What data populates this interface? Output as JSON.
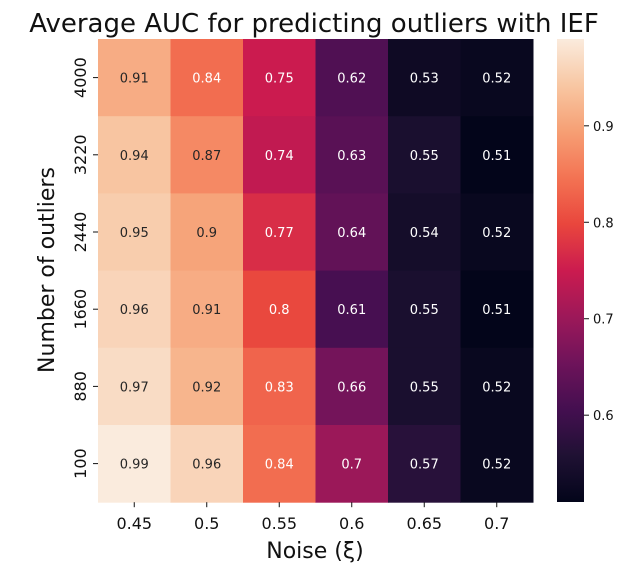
{
  "chart_data": {
    "type": "heatmap",
    "title": "Average AUC for predicting outliers with IEF",
    "xlabel": "Noise (ξ)",
    "ylabel": "Number of outliers",
    "x_categories": [
      "0.45",
      "0.5",
      "0.55",
      "0.6",
      "0.65",
      "0.7"
    ],
    "y_categories": [
      "4000",
      "3220",
      "2440",
      "1660",
      "880",
      "100"
    ],
    "values": [
      [
        0.91,
        0.84,
        0.75,
        0.62,
        0.53,
        0.52
      ],
      [
        0.94,
        0.87,
        0.74,
        0.63,
        0.55,
        0.51
      ],
      [
        0.95,
        0.9,
        0.77,
        0.64,
        0.54,
        0.52
      ],
      [
        0.96,
        0.91,
        0.8,
        0.61,
        0.55,
        0.51
      ],
      [
        0.97,
        0.92,
        0.83,
        0.66,
        0.55,
        0.52
      ],
      [
        0.99,
        0.96,
        0.84,
        0.7,
        0.57,
        0.52
      ]
    ],
    "colormap": "rocket",
    "colorbar": {
      "min": 0.51,
      "max": 0.99,
      "ticks": [
        0.6,
        0.7,
        0.8,
        0.9
      ]
    },
    "grid": false
  }
}
